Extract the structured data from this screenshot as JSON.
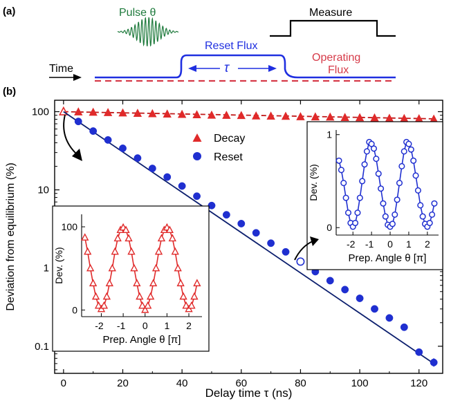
{
  "panel_labels": {
    "a": "(a)",
    "b": "(b)"
  },
  "schematic": {
    "pulse_label": "Pulse θ",
    "measure_label": "Measure",
    "reset_flux_label": "Reset Flux",
    "tau_label": "τ",
    "operating_flux_label_1": "Operating",
    "operating_flux_label_2": "Flux",
    "time_label": "Time",
    "colors": {
      "pulse": "#1e7a3c",
      "reset": "#1f2fe0",
      "operating": "#d63a48",
      "ink": "#000000"
    }
  },
  "chart_data": [
    {
      "type": "scatter",
      "name": "main",
      "xlabel": "Delay time τ (ns)",
      "ylabel": "Deviation from equilibrium (%)",
      "xlim": [
        -3,
        128
      ],
      "ylim": [
        0.045,
        140
      ],
      "yscale": "log",
      "xticks": [
        0,
        20,
        40,
        60,
        80,
        100,
        120
      ],
      "yticks": [
        {
          "v": 100,
          "label": "100"
        },
        {
          "v": 10,
          "label": "10"
        },
        {
          "v": 1,
          "label": "1"
        },
        {
          "v": 0.1,
          "label": "0.1"
        }
      ],
      "legend": {
        "placement": "upper-middle",
        "entries": [
          "Decay",
          "Reset"
        ]
      },
      "series": [
        {
          "name": "Decay",
          "marker": "triangle",
          "color": "#e02a2a",
          "x": [
            0,
            5,
            10,
            15,
            20,
            25,
            30,
            35,
            40,
            45,
            50,
            55,
            60,
            65,
            70,
            75,
            80,
            85,
            90,
            95,
            100,
            105,
            110,
            115,
            120,
            125
          ],
          "y": [
            100,
            99,
            98,
            97,
            96,
            95,
            94,
            93,
            92,
            91,
            90,
            89.5,
            89,
            88,
            87.5,
            87,
            86,
            85.5,
            85,
            84,
            83.5,
            83,
            82,
            81.5,
            81,
            80
          ],
          "fit": [
            [
              0,
              100
            ],
            [
              125,
              81
            ]
          ]
        },
        {
          "name": "Reset",
          "marker": "circle",
          "color": "#1f2fd0",
          "x": [
            5,
            10,
            15,
            20,
            25,
            30,
            35,
            40,
            45,
            50,
            55,
            60,
            65,
            70,
            75,
            80,
            85,
            90,
            95,
            100,
            105,
            110,
            115,
            120,
            125
          ],
          "y": [
            75,
            56.5,
            43.5,
            34,
            25.5,
            18.8,
            14.6,
            11.2,
            8.3,
            6.3,
            4.8,
            3.7,
            2.82,
            2.08,
            1.61,
            1.21,
            0.9,
            0.69,
            0.53,
            0.41,
            0.3,
            0.23,
            0.175,
            0.084,
            0.062
          ],
          "fit": [
            [
              0,
              100
            ],
            [
              125,
              0.06
            ]
          ]
        }
      ],
      "annotations": [
        {
          "text": "open triangle at x=0 (hollow marker)",
          "hidden": true
        }
      ]
    },
    {
      "type": "line",
      "name": "inset-decay",
      "xlabel": "Prep. Angle θ [π]",
      "ylabel": "Dev. (%)",
      "xlim": [
        -2.9,
        2.6
      ],
      "ylim": [
        -8,
        115
      ],
      "xticks": [
        -2,
        -1,
        0,
        1,
        2
      ],
      "yticks": [
        0,
        100
      ],
      "color": "#e02a2a",
      "marker": "open-triangle",
      "series": [
        {
          "x": [
            -2.75,
            -2.625,
            -2.5,
            -2.375,
            -2.25,
            -2.125,
            -2.0,
            -1.875,
            -1.75,
            -1.625,
            -1.5,
            -1.375,
            -1.25,
            -1.125,
            -1.0,
            -0.875,
            -0.75,
            -0.625,
            -0.5,
            -0.375,
            -0.25,
            -0.125,
            0.0,
            0.125,
            0.25,
            0.375,
            0.5,
            0.625,
            0.75,
            0.875,
            1.0,
            1.125,
            1.25,
            1.375,
            1.5,
            1.625,
            1.75,
            1.875,
            2.0,
            2.125,
            2.25,
            2.375
          ],
          "y": [
            87,
            70,
            50,
            32,
            16,
            5,
            1,
            5,
            16,
            32,
            50,
            70,
            86,
            96,
            99,
            96,
            86,
            70,
            50,
            32,
            16,
            5,
            0,
            5,
            16,
            32,
            50,
            70,
            86,
            96,
            99,
            96,
            86,
            70,
            50,
            32,
            16,
            5,
            1,
            5,
            16,
            32
          ]
        }
      ]
    },
    {
      "type": "line",
      "name": "inset-reset",
      "xlabel": "Prep. Angle θ [π]",
      "ylabel": "Dev. (%)",
      "xlim": [
        -2.9,
        2.6
      ],
      "ylim": [
        -0.08,
        1.05
      ],
      "xticks": [
        -2,
        -1,
        0,
        1,
        2
      ],
      "yticks": [
        0,
        1
      ],
      "color": "#1f2fd0",
      "marker": "open-circle",
      "series": [
        {
          "x": [
            -2.75,
            -2.625,
            -2.5,
            -2.375,
            -2.25,
            -2.125,
            -2.0,
            -1.875,
            -1.75,
            -1.625,
            -1.5,
            -1.375,
            -1.25,
            -1.125,
            -1.0,
            -0.875,
            -0.75,
            -0.625,
            -0.5,
            -0.375,
            -0.25,
            -0.125,
            0.0,
            0.125,
            0.25,
            0.375,
            0.5,
            0.625,
            0.75,
            0.875,
            1.0,
            1.125,
            1.25,
            1.375,
            1.5,
            1.625,
            1.75,
            1.875,
            2.0,
            2.125,
            2.25,
            2.375
          ],
          "y": [
            0.72,
            0.62,
            0.48,
            0.32,
            0.16,
            0.05,
            0.01,
            0.05,
            0.16,
            0.32,
            0.5,
            0.68,
            0.82,
            0.92,
            0.9,
            0.85,
            0.74,
            0.58,
            0.42,
            0.26,
            0.12,
            0.03,
            0.01,
            0.04,
            0.14,
            0.3,
            0.48,
            0.66,
            0.82,
            0.92,
            0.9,
            0.84,
            0.72,
            0.56,
            0.4,
            0.24,
            0.12,
            0.04,
            0.01,
            0.05,
            0.14,
            0.26
          ]
        }
      ]
    }
  ]
}
